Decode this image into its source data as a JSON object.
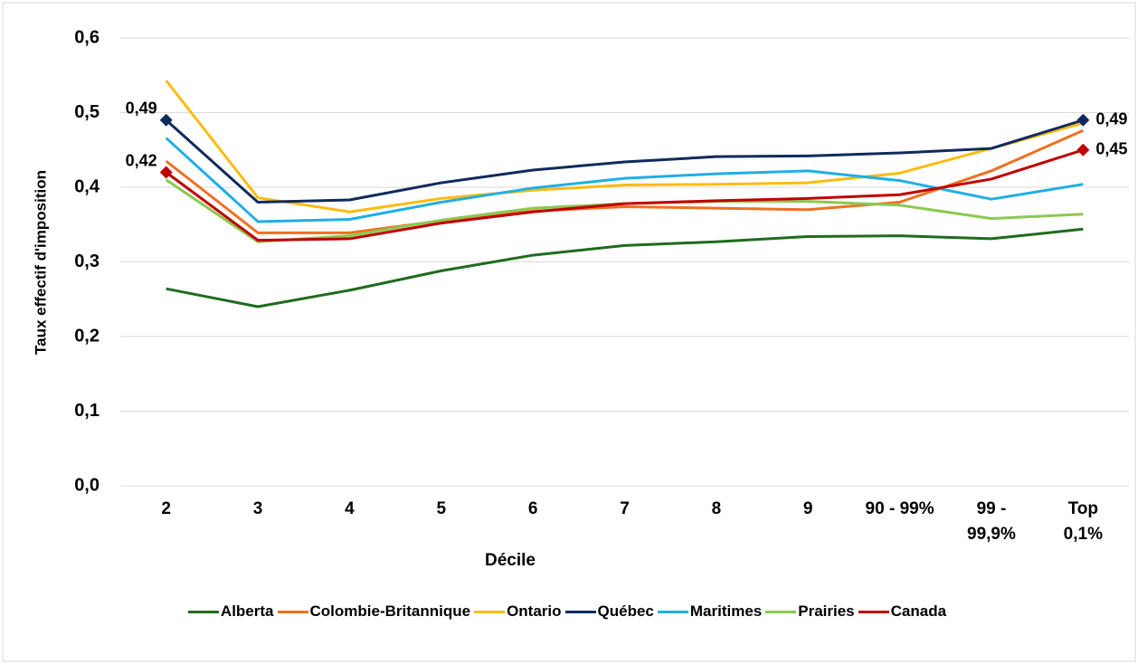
{
  "chart_data": {
    "type": "line",
    "x_label": "Décile",
    "y_label": "Taux effectif d'imposition",
    "categories": [
      "2",
      "3",
      "4",
      "5",
      "6",
      "7",
      "8",
      "9",
      "90 - 99%",
      "99 - 99,9%",
      "Top 0,1%"
    ],
    "ylim": [
      0,
      0.6
    ],
    "yticks": [
      {
        "value": 0,
        "label": "0,0"
      },
      {
        "value": 0.1,
        "label": "0,1"
      },
      {
        "value": 0.2,
        "label": "0,2"
      },
      {
        "value": 0.3,
        "label": "0,3"
      },
      {
        "value": 0.4,
        "label": "0,4"
      },
      {
        "value": 0.5,
        "label": "0,5"
      },
      {
        "value": 0.6,
        "label": "0,6"
      }
    ],
    "grid": true,
    "legend": "bottom",
    "series": [
      {
        "name": "Alberta",
        "color": "#1e6b1e",
        "values": [
          0.264,
          0.24,
          0.262,
          0.288,
          0.309,
          0.322,
          0.327,
          0.334,
          0.335,
          0.331,
          0.344
        ]
      },
      {
        "name": "Colombie-Britannique",
        "color": "#f07020",
        "values": [
          0.435,
          0.339,
          0.339,
          0.355,
          0.368,
          0.374,
          0.372,
          0.37,
          0.38,
          0.422,
          0.476
        ]
      },
      {
        "name": "Ontario",
        "color": "#fbbc10",
        "values": [
          0.543,
          0.386,
          0.367,
          0.385,
          0.396,
          0.403,
          0.404,
          0.406,
          0.419,
          0.452,
          0.486
        ]
      },
      {
        "name": "Québec",
        "color": "#0f2a5e",
        "values": [
          0.49,
          0.38,
          0.383,
          0.406,
          0.423,
          0.434,
          0.441,
          0.442,
          0.446,
          0.452,
          0.49
        ],
        "value_labels": [
          "0,49",
          null,
          null,
          null,
          null,
          null,
          null,
          null,
          null,
          null,
          "0,49"
        ]
      },
      {
        "name": "Maritimes",
        "color": "#20aee6",
        "values": [
          0.466,
          0.354,
          0.357,
          0.38,
          0.399,
          0.412,
          0.418,
          0.422,
          0.409,
          0.384,
          0.404
        ]
      },
      {
        "name": "Prairies",
        "color": "#8cc850",
        "values": [
          0.41,
          0.327,
          0.335,
          0.356,
          0.372,
          0.378,
          0.381,
          0.381,
          0.376,
          0.358,
          0.364
        ]
      },
      {
        "name": "Canada",
        "color": "#c00000",
        "values": [
          0.42,
          0.329,
          0.331,
          0.352,
          0.367,
          0.378,
          0.382,
          0.385,
          0.39,
          0.411,
          0.45
        ],
        "value_labels": [
          "0,42",
          null,
          null,
          null,
          null,
          null,
          null,
          null,
          null,
          null,
          "0,45"
        ]
      }
    ]
  }
}
